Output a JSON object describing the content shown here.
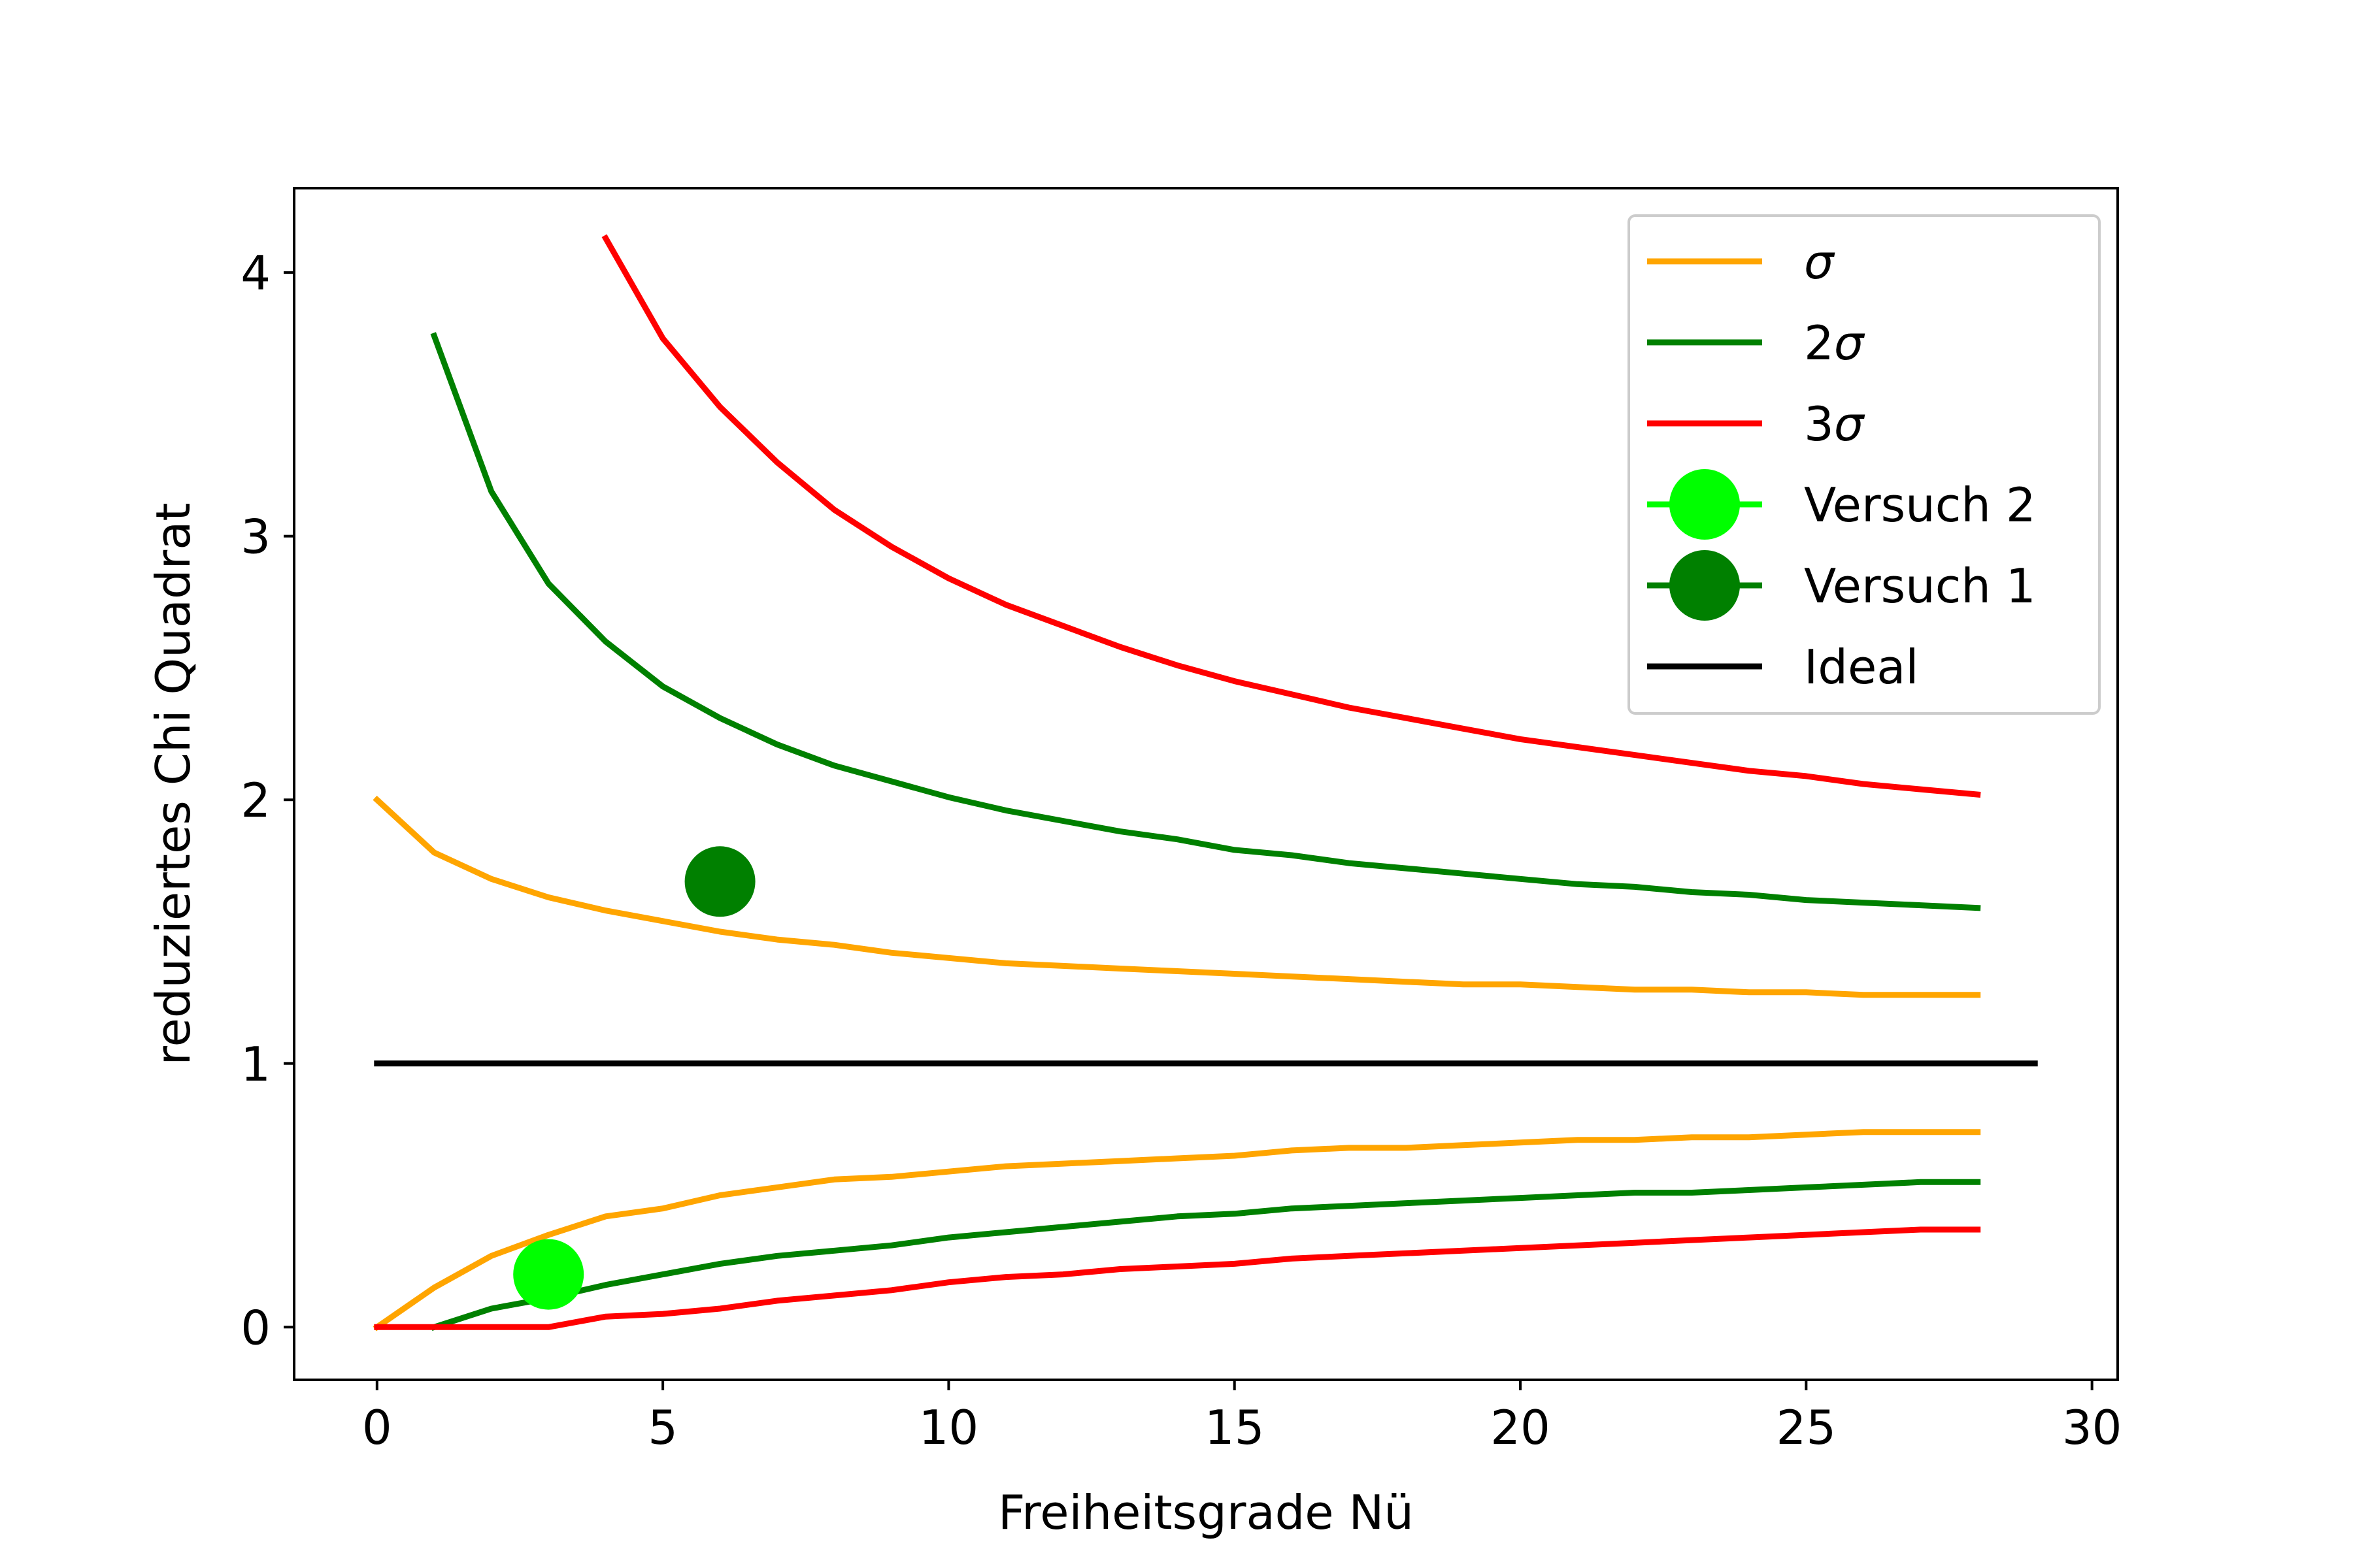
{
  "chart_data": {
    "type": "line",
    "xlabel": "Freiheitsgrade Nü",
    "ylabel": "reduziertes Chi Quadrat",
    "xlim": [
      -1.45,
      30.45
    ],
    "ylim": [
      -0.2,
      4.32
    ],
    "xticks": [
      0,
      5,
      10,
      15,
      20,
      25,
      30
    ],
    "yticks": [
      0,
      1,
      2,
      3,
      4
    ],
    "grid": false,
    "legend_position": "top-right",
    "series": [
      {
        "name": "σ",
        "legend_prefix": "",
        "legend_symbol": "σ",
        "color": "#ffa500",
        "kind": "line",
        "segments": [
          {
            "x": [
              0,
              1,
              2,
              3,
              4,
              5,
              6,
              7,
              8,
              9,
              10,
              11,
              12,
              13,
              14,
              15,
              16,
              17,
              18,
              19,
              20,
              21,
              22,
              23,
              24,
              25,
              26,
              27,
              28
            ],
            "y": [
              2.0,
              1.8,
              1.7,
              1.63,
              1.58,
              1.54,
              1.5,
              1.47,
              1.45,
              1.42,
              1.4,
              1.38,
              1.37,
              1.36,
              1.35,
              1.34,
              1.33,
              1.32,
              1.31,
              1.3,
              1.3,
              1.29,
              1.28,
              1.28,
              1.27,
              1.27,
              1.26,
              1.26,
              1.26
            ]
          },
          {
            "x": [
              0,
              1,
              2,
              3,
              4,
              5,
              6,
              7,
              8,
              9,
              10,
              11,
              12,
              13,
              14,
              15,
              16,
              17,
              18,
              19,
              20,
              21,
              22,
              23,
              24,
              25,
              26,
              27,
              28
            ],
            "y": [
              0.0,
              0.15,
              0.27,
              0.35,
              0.42,
              0.45,
              0.5,
              0.53,
              0.56,
              0.57,
              0.59,
              0.61,
              0.62,
              0.63,
              0.64,
              0.65,
              0.67,
              0.68,
              0.68,
              0.69,
              0.7,
              0.71,
              0.71,
              0.72,
              0.72,
              0.73,
              0.74,
              0.74,
              0.74
            ]
          }
        ]
      },
      {
        "name": "2σ",
        "legend_prefix": "2",
        "legend_symbol": "σ",
        "color": "#008000",
        "kind": "line",
        "segments": [
          {
            "x": [
              1,
              2,
              3,
              4,
              5,
              6,
              7,
              8,
              9,
              10,
              11,
              12,
              13,
              14,
              15,
              16,
              17,
              18,
              19,
              20,
              21,
              22,
              23,
              24,
              25,
              26,
              27,
              28
            ],
            "y": [
              3.76,
              3.17,
              2.82,
              2.6,
              2.43,
              2.31,
              2.21,
              2.13,
              2.07,
              2.01,
              1.96,
              1.92,
              1.88,
              1.85,
              1.81,
              1.79,
              1.76,
              1.74,
              1.72,
              1.7,
              1.68,
              1.67,
              1.65,
              1.64,
              1.62,
              1.61,
              1.6,
              1.59
            ]
          },
          {
            "x": [
              1,
              2,
              3,
              4,
              5,
              6,
              7,
              8,
              9,
              10,
              11,
              12,
              13,
              14,
              15,
              16,
              17,
              18,
              19,
              20,
              21,
              22,
              23,
              24,
              25,
              26,
              27,
              28
            ],
            "y": [
              0.0,
              0.07,
              0.11,
              0.16,
              0.2,
              0.24,
              0.27,
              0.29,
              0.31,
              0.34,
              0.36,
              0.38,
              0.4,
              0.42,
              0.43,
              0.45,
              0.46,
              0.47,
              0.48,
              0.49,
              0.5,
              0.51,
              0.51,
              0.52,
              0.53,
              0.54,
              0.55,
              0.55
            ]
          }
        ]
      },
      {
        "name": "3σ",
        "legend_prefix": "3",
        "legend_symbol": "σ",
        "color": "#ff0000",
        "kind": "line",
        "segments": [
          {
            "x": [
              4,
              5,
              6,
              7,
              8,
              9,
              10,
              11,
              12,
              13,
              14,
              15,
              16,
              17,
              18,
              19,
              20,
              21,
              22,
              23,
              24,
              25,
              26,
              27,
              28
            ],
            "y": [
              4.13,
              3.75,
              3.49,
              3.28,
              3.1,
              2.96,
              2.84,
              2.74,
              2.66,
              2.58,
              2.51,
              2.45,
              2.4,
              2.35,
              2.31,
              2.27,
              2.23,
              2.2,
              2.17,
              2.14,
              2.11,
              2.09,
              2.06,
              2.04,
              2.02
            ]
          },
          {
            "x": [
              0,
              1,
              2,
              3,
              4,
              5,
              6,
              7,
              8,
              9,
              10,
              11,
              12,
              13,
              14,
              15,
              16,
              17,
              18,
              19,
              20,
              21,
              22,
              23,
              24,
              25,
              26,
              27,
              28
            ],
            "y": [
              0.0,
              0.0,
              0.0,
              0.0,
              0.04,
              0.05,
              0.07,
              0.1,
              0.12,
              0.14,
              0.17,
              0.19,
              0.2,
              0.22,
              0.23,
              0.24,
              0.26,
              0.27,
              0.28,
              0.29,
              0.3,
              0.31,
              0.32,
              0.33,
              0.34,
              0.35,
              0.36,
              0.37,
              0.37
            ]
          }
        ]
      },
      {
        "name": "Versuch 2",
        "legend_prefix": "Versuch 2",
        "legend_symbol": "",
        "color": "#00ff00",
        "kind": "point",
        "x": [
          3
        ],
        "y": [
          0.2
        ]
      },
      {
        "name": "Versuch 1",
        "legend_prefix": "Versuch 1",
        "legend_symbol": "",
        "color": "#008000",
        "kind": "point",
        "x": [
          6
        ],
        "y": [
          1.69
        ]
      },
      {
        "name": "Ideal",
        "legend_prefix": "Ideal",
        "legend_symbol": "",
        "color": "#000000",
        "kind": "line",
        "segments": [
          {
            "x": [
              0,
              29
            ],
            "y": [
              1,
              1
            ]
          }
        ]
      }
    ]
  }
}
